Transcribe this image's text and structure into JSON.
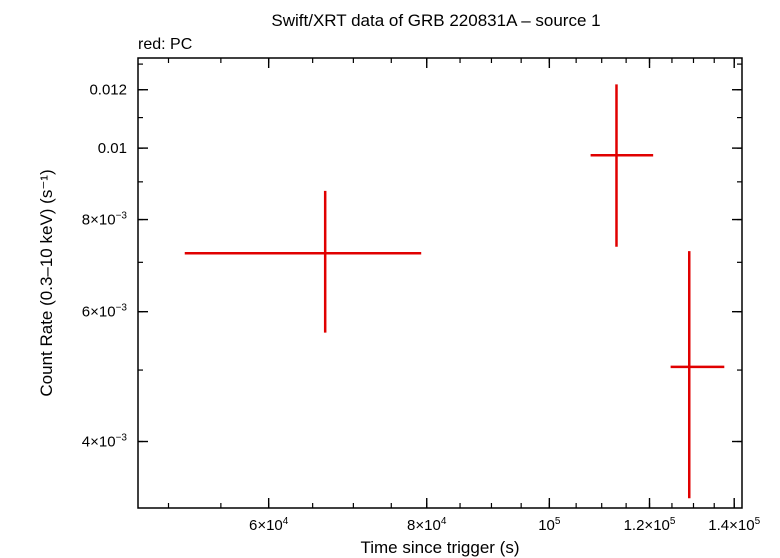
{
  "chart_data": {
    "type": "scatter",
    "title": "Swift/XRT data of GRB 220831A – source 1",
    "subtitle": "red: PC",
    "xlabel": "Time since trigger (s)",
    "ylabel": "Count Rate (0.3–10 keV) (s⁻¹)",
    "x_scale": "log",
    "y_scale": "log",
    "xlim": [
      47300,
      142000
    ],
    "ylim": [
      0.00325,
      0.01325
    ],
    "x_ticks": [
      {
        "value": 60000,
        "mant": "6×10",
        "exp": "4"
      },
      {
        "value": 80000,
        "mant": "8×10",
        "exp": "4"
      },
      {
        "value": 100000,
        "mant": "10",
        "exp": "5"
      },
      {
        "value": 120000,
        "mant": "1.2×10",
        "exp": "5"
      },
      {
        "value": 140000,
        "mant": "1.4×10",
        "exp": "5"
      }
    ],
    "y_ticks": [
      {
        "value": 0.004,
        "mant": "4×10",
        "exp": "−3"
      },
      {
        "value": 0.006,
        "mant": "6×10",
        "exp": "−3"
      },
      {
        "value": 0.008,
        "mant": "8×10",
        "exp": "−3"
      },
      {
        "value": 0.01,
        "mant": "0.01",
        "exp": ""
      },
      {
        "value": 0.012,
        "mant": "0.012",
        "exp": ""
      }
    ],
    "series": [
      {
        "color": "#e00000",
        "points": [
          {
            "x": 66500,
            "x_lo": 51500,
            "x_hi": 79200,
            "y": 0.0072,
            "y_lo": 0.00562,
            "y_hi": 0.00875
          },
          {
            "x": 113000,
            "x_lo": 107800,
            "x_hi": 120800,
            "y": 0.00978,
            "y_lo": 0.00735,
            "y_hi": 0.0122
          },
          {
            "x": 129000,
            "x_lo": 124700,
            "x_hi": 137500,
            "y": 0.00505,
            "y_lo": 0.00335,
            "y_hi": 0.00725
          }
        ]
      }
    ]
  }
}
